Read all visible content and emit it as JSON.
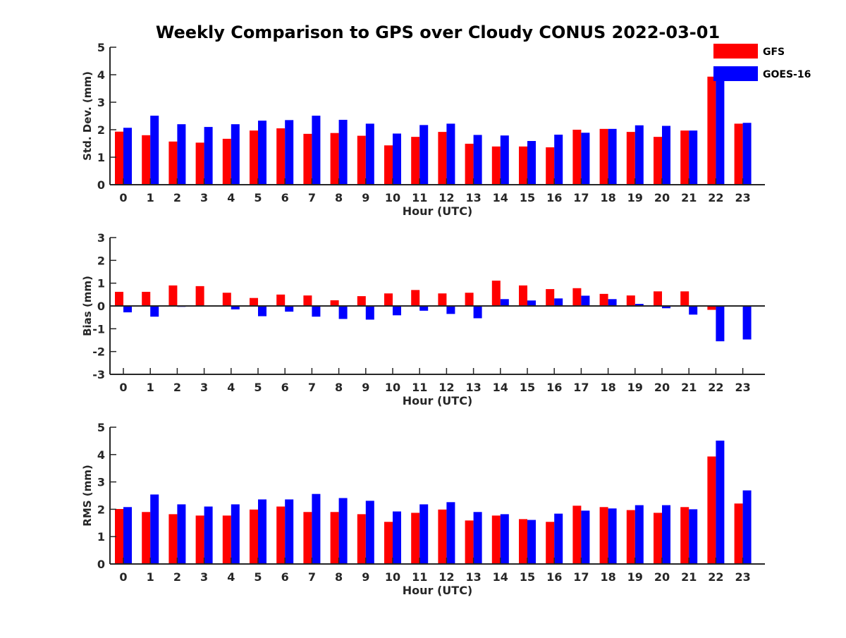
{
  "title": "Weekly Comparison to GPS over Cloudy CONUS 2022-03-01",
  "legend": [
    {
      "label": "GFS",
      "color": "#ff0000"
    },
    {
      "label": "GOES-16",
      "color": "#0000ff"
    }
  ],
  "chart_data": [
    {
      "type": "bar",
      "xlabel": "Hour (UTC)",
      "ylabel": "Std. Dev. (mm)",
      "categories": [
        "0",
        "1",
        "2",
        "3",
        "4",
        "5",
        "6",
        "7",
        "8",
        "9",
        "10",
        "11",
        "12",
        "13",
        "14",
        "15",
        "16",
        "17",
        "18",
        "19",
        "20",
        "21",
        "22",
        "23"
      ],
      "ylim": [
        0,
        5
      ],
      "yticks": [
        "0",
        "1",
        "2",
        "3",
        "4",
        "5"
      ],
      "series": [
        {
          "name": "GFS",
          "color": "#ff0000",
          "values": [
            1.93,
            1.8,
            1.57,
            1.53,
            1.67,
            1.97,
            2.05,
            1.85,
            1.88,
            1.78,
            1.43,
            1.74,
            1.92,
            1.49,
            1.39,
            1.39,
            1.36,
            2.0,
            2.03,
            1.92,
            1.74,
            1.97,
            3.93,
            2.22
          ]
        },
        {
          "name": "GOES-16",
          "color": "#0000ff",
          "values": [
            2.07,
            2.51,
            2.2,
            2.1,
            2.2,
            2.33,
            2.35,
            2.51,
            2.36,
            2.22,
            1.86,
            2.17,
            2.22,
            1.81,
            1.79,
            1.59,
            1.82,
            1.89,
            2.03,
            2.16,
            2.14,
            1.97,
            4.2,
            2.25
          ]
        }
      ]
    },
    {
      "type": "bar",
      "xlabel": "Hour (UTC)",
      "ylabel": "Bias (mm)",
      "categories": [
        "0",
        "1",
        "2",
        "3",
        "4",
        "5",
        "6",
        "7",
        "8",
        "9",
        "10",
        "11",
        "12",
        "13",
        "14",
        "15",
        "16",
        "17",
        "18",
        "19",
        "20",
        "21",
        "22",
        "23"
      ],
      "ylim": [
        -3,
        3
      ],
      "yticks": [
        "-3",
        "-2",
        "-1",
        "0",
        "1",
        "2",
        "3"
      ],
      "series": [
        {
          "name": "GFS",
          "color": "#ff0000",
          "values": [
            0.62,
            0.62,
            0.9,
            0.87,
            0.58,
            0.35,
            0.5,
            0.46,
            0.25,
            0.43,
            0.55,
            0.7,
            0.55,
            0.58,
            1.11,
            0.9,
            0.74,
            0.78,
            0.53,
            0.46,
            0.64,
            0.64,
            -0.17,
            -0.03
          ]
        },
        {
          "name": "GOES-16",
          "color": "#0000ff",
          "values": [
            -0.28,
            -0.47,
            -0.04,
            0.03,
            -0.15,
            -0.45,
            -0.25,
            -0.47,
            -0.57,
            -0.6,
            -0.41,
            -0.21,
            -0.35,
            -0.54,
            0.3,
            0.24,
            0.33,
            0.45,
            0.3,
            0.09,
            -0.1,
            -0.38,
            -1.55,
            -1.47
          ]
        }
      ]
    },
    {
      "type": "bar",
      "xlabel": "Hour (UTC)",
      "ylabel": "RMS (mm)",
      "categories": [
        "0",
        "1",
        "2",
        "3",
        "4",
        "5",
        "6",
        "7",
        "8",
        "9",
        "10",
        "11",
        "12",
        "13",
        "14",
        "15",
        "16",
        "17",
        "18",
        "19",
        "20",
        "21",
        "22",
        "23"
      ],
      "ylim": [
        0,
        5
      ],
      "yticks": [
        "0",
        "1",
        "2",
        "3",
        "4",
        "5"
      ],
      "series": [
        {
          "name": "GFS",
          "color": "#ff0000",
          "values": [
            2.01,
            1.9,
            1.82,
            1.77,
            1.77,
            1.99,
            2.1,
            1.9,
            1.9,
            1.82,
            1.54,
            1.87,
            1.99,
            1.59,
            1.77,
            1.64,
            1.54,
            2.13,
            2.08,
            1.97,
            1.87,
            2.08,
            3.93,
            2.21
          ]
        },
        {
          "name": "GOES-16",
          "color": "#0000ff",
          "values": [
            2.08,
            2.54,
            2.18,
            2.1,
            2.18,
            2.36,
            2.36,
            2.56,
            2.41,
            2.31,
            1.92,
            2.18,
            2.26,
            1.9,
            1.82,
            1.61,
            1.84,
            1.95,
            2.03,
            2.15,
            2.15,
            2.0,
            4.51,
            2.69
          ]
        }
      ]
    }
  ]
}
